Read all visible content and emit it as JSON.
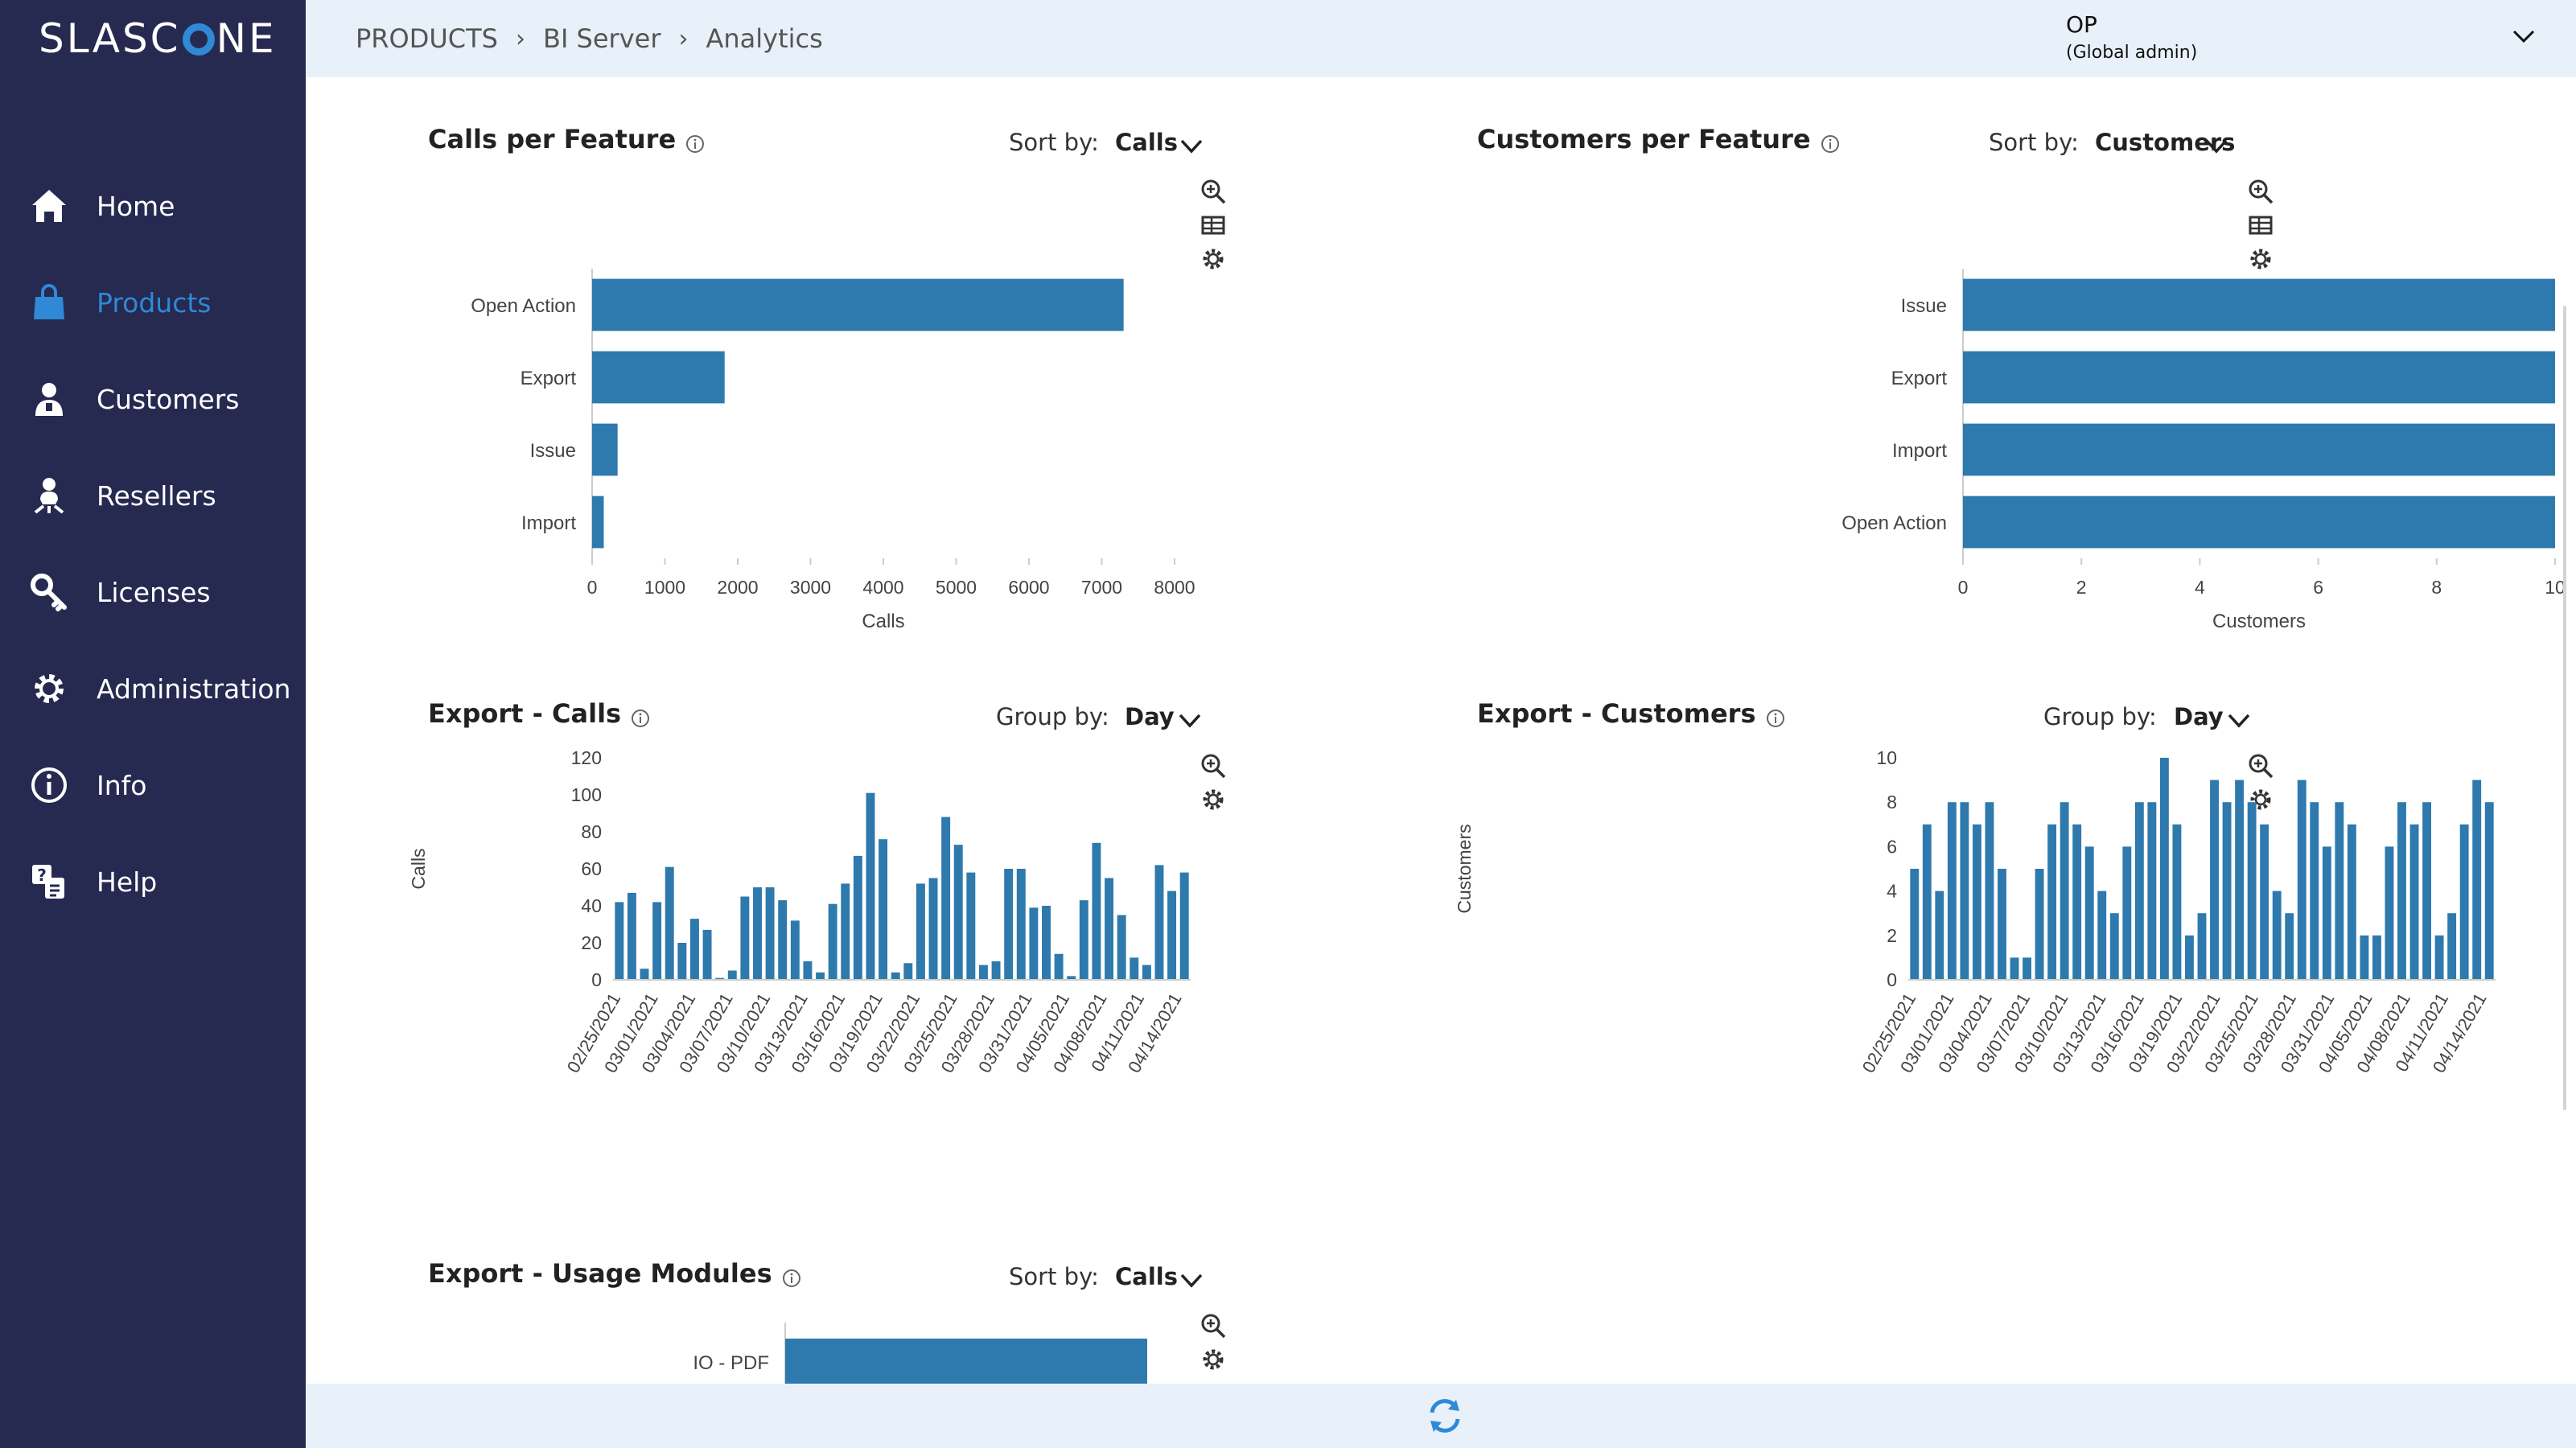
{
  "app": {
    "logo_text_left": "SLASC",
    "logo_text_right": "NE"
  },
  "nav": [
    {
      "label": "Home",
      "icon": "home-icon"
    },
    {
      "label": "Products",
      "icon": "shopping-bag-icon",
      "active": true
    },
    {
      "label": "Customers",
      "icon": "customer-icon"
    },
    {
      "label": "Resellers",
      "icon": "reseller-icon"
    },
    {
      "label": "Licenses",
      "icon": "key-icon"
    },
    {
      "label": "Administration",
      "icon": "gear-icon"
    },
    {
      "label": "Info",
      "icon": "info-icon"
    },
    {
      "label": "Help",
      "icon": "help-icon"
    }
  ],
  "breadcrumb": [
    "PRODUCTS",
    "BI Server",
    "Analytics"
  ],
  "user": {
    "name": "OP",
    "role": "(Global admin)"
  },
  "colors": {
    "bar": "#2e79ad",
    "sidebar": "#262950",
    "accent": "#2f89d6",
    "header": "#e8f1f9"
  },
  "panels": {
    "calls_per_feature": {
      "title": "Calls per Feature",
      "sort_label": "Sort by:",
      "sort_value": "Calls"
    },
    "customers_per_feature": {
      "title": "Customers per Feature",
      "sort_label": "Sort by:",
      "sort_value": "Customers"
    },
    "export_calls": {
      "title": "Export - Calls",
      "sort_label": "Group by:",
      "sort_value": "Day"
    },
    "export_customers": {
      "title": "Export - Customers",
      "sort_label": "Group by:",
      "sort_value": "Day"
    },
    "export_usage_modules": {
      "title": "Export - Usage Modules",
      "sort_label": "Sort by:",
      "sort_value": "Calls"
    }
  },
  "chart_data": [
    {
      "id": "calls_per_feature",
      "type": "bar",
      "orientation": "horizontal",
      "title": "Calls per Feature",
      "categories": [
        "Open Action",
        "Export",
        "Issue",
        "Import"
      ],
      "values": [
        7300,
        1820,
        350,
        160
      ],
      "xlabel": "Calls",
      "xlim": [
        0,
        8000
      ],
      "xticks": [
        "0",
        "1000",
        "2000",
        "3000",
        "4000",
        "5000",
        "6000",
        "7000",
        "8000"
      ]
    },
    {
      "id": "customers_per_feature",
      "type": "bar",
      "orientation": "horizontal",
      "title": "Customers per Feature",
      "categories": [
        "Issue",
        "Export",
        "Import",
        "Open Action"
      ],
      "values": [
        10,
        10,
        10,
        10
      ],
      "xlabel": "Customers",
      "xlim": [
        0,
        10
      ],
      "xticks": [
        "0",
        "2",
        "4",
        "6",
        "8",
        "10"
      ]
    },
    {
      "id": "export_calls",
      "type": "bar",
      "title": "Export - Calls",
      "ylabel": "Calls",
      "ylim": [
        0,
        120
      ],
      "yticks": [
        "0",
        "20",
        "40",
        "60",
        "80",
        "100",
        "120"
      ],
      "xtick_labels": [
        "02/25/2021",
        "03/01/2021",
        "03/04/2021",
        "03/07/2021",
        "03/10/2021",
        "03/13/2021",
        "03/16/2021",
        "03/19/2021",
        "03/22/2021",
        "03/25/2021",
        "03/28/2021",
        "03/31/2021",
        "04/05/2021",
        "04/08/2021",
        "04/11/2021",
        "04/14/2021"
      ],
      "values": [
        42,
        47,
        6,
        42,
        61,
        20,
        33,
        27,
        1,
        5,
        45,
        50,
        50,
        43,
        32,
        10,
        4,
        41,
        52,
        67,
        101,
        76,
        4,
        9,
        52,
        55,
        88,
        73,
        58,
        8,
        10,
        60,
        60,
        39,
        40,
        14,
        2,
        43,
        74,
        55,
        35,
        12,
        8,
        62,
        48,
        58
      ]
    },
    {
      "id": "export_customers",
      "type": "bar",
      "title": "Export - Customers",
      "ylabel": "Customers",
      "ylim": [
        0,
        10
      ],
      "yticks": [
        "0",
        "2",
        "4",
        "6",
        "8",
        "10"
      ],
      "xtick_labels": [
        "02/25/2021",
        "03/01/2021",
        "03/04/2021",
        "03/07/2021",
        "03/10/2021",
        "03/13/2021",
        "03/16/2021",
        "03/19/2021",
        "03/22/2021",
        "03/25/2021",
        "03/28/2021",
        "03/31/2021",
        "04/05/2021",
        "04/08/2021",
        "04/11/2021",
        "04/14/2021"
      ],
      "values": [
        5,
        7,
        4,
        8,
        8,
        7,
        8,
        5,
        1,
        1,
        5,
        7,
        8,
        7,
        6,
        4,
        3,
        6,
        8,
        8,
        10,
        7,
        2,
        3,
        9,
        8,
        9,
        8,
        7,
        4,
        3,
        9,
        8,
        6,
        8,
        7,
        2,
        2,
        6,
        8,
        7,
        8,
        2,
        3,
        7,
        9,
        8
      ]
    },
    {
      "id": "export_usage_modules",
      "type": "bar",
      "orientation": "horizontal",
      "title": "Export - Usage Modules",
      "categories": [
        "IO - PDF"
      ],
      "values": [
        1
      ]
    }
  ]
}
